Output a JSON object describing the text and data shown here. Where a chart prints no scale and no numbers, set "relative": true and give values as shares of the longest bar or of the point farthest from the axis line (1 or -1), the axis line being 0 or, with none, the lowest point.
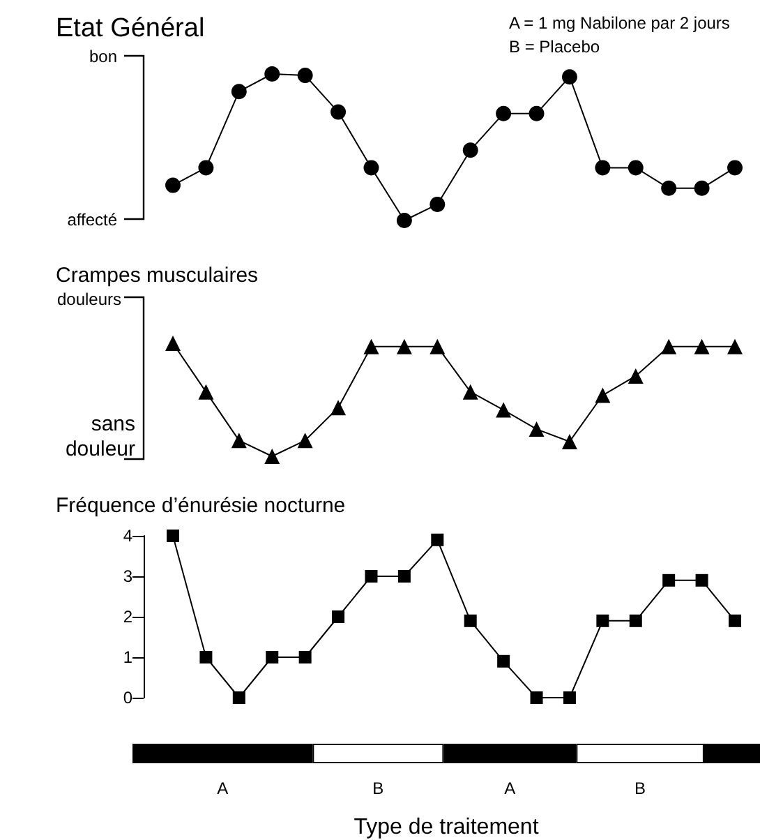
{
  "chart_data": [
    {
      "type": "line",
      "title": "Etat Général",
      "annotations": [
        "A = 1 mg Nabilone par 2 jours",
        "B = Placebo",
        "bon",
        "affecté"
      ],
      "categories": [
        null,
        null,
        null,
        null,
        null,
        null,
        null,
        null,
        null,
        null,
        null,
        null,
        null,
        null,
        null,
        null,
        null,
        null
      ],
      "values": [
        0.24,
        0.36,
        0.88,
        1.0,
        0.99,
        0.74,
        0.36,
        0.0,
        0.11,
        0.48,
        0.73,
        0.73,
        0.98,
        0.36,
        0.36,
        0.22,
        0.22,
        0.36
      ],
      "color": "#000000",
      "marker": "circle",
      "relative": true,
      "tick_labels": false
    },
    {
      "type": "line",
      "title": "Crampes musculaires",
      "annotations": [
        "douleurs",
        "sans\ndouleur"
      ],
      "categories": [
        null,
        null,
        null,
        null,
        null,
        null,
        null,
        null,
        null,
        null,
        null,
        null,
        null,
        null,
        null,
        null,
        null,
        null
      ],
      "values": [
        1.0,
        0.57,
        0.14,
        0.0,
        0.14,
        0.43,
        0.97,
        0.97,
        0.97,
        0.57,
        0.41,
        0.24,
        0.13,
        0.54,
        0.71,
        0.97,
        0.97,
        0.97
      ],
      "color": "#000000",
      "marker": "triangle",
      "relative": true,
      "tick_labels": false
    },
    {
      "type": "line",
      "title": "Fréquence d’énurésie nocturne",
      "categories": [
        null,
        null,
        null,
        null,
        null,
        null,
        null,
        null,
        null,
        null,
        null,
        null,
        null,
        null,
        null,
        null,
        null,
        null
      ],
      "values": [
        4,
        1,
        0,
        1,
        1,
        2,
        3,
        3,
        3.9,
        1.9,
        0.9,
        0,
        0,
        1.9,
        1.9,
        2.9,
        2.9,
        1.9
      ],
      "color": "#000000",
      "marker": "square",
      "ylim": [
        0,
        4
      ],
      "yticks": [
        0,
        1,
        2,
        3,
        4
      ],
      "tick_labels": "y"
    },
    {
      "type": "bar",
      "orientation": "horizontal",
      "stacked": true,
      "relative": true,
      "xlabel": "Type de traitement",
      "categories": [
        null
      ],
      "series": [
        {
          "name": "A",
          "color": "#000000",
          "values": [
            0.287
          ]
        },
        {
          "name": "B",
          "color": "#ffffff",
          "values": [
            0.209
          ]
        },
        {
          "name": "A",
          "color": "#000000",
          "values": [
            0.211
          ]
        },
        {
          "name": "B",
          "color": "#ffffff",
          "values": [
            0.204
          ]
        },
        {
          "color": "#000000",
          "values": [
            0.089
          ]
        }
      ],
      "tick_labels": false
    }
  ]
}
